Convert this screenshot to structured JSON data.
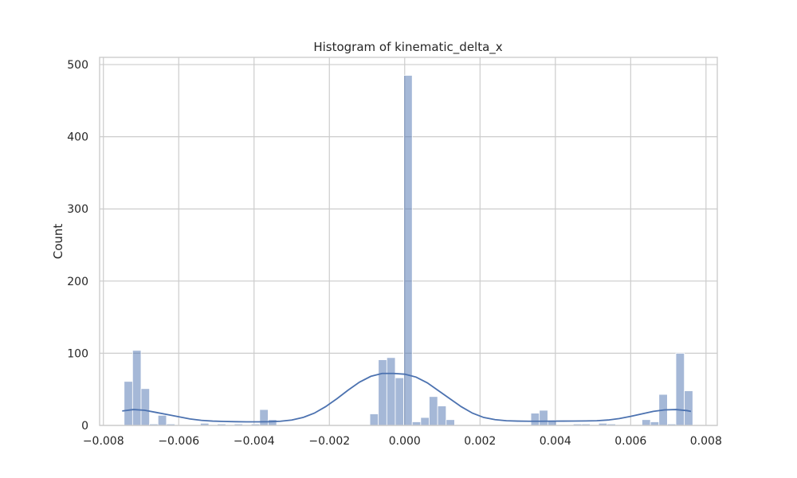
{
  "chart_data": {
    "type": "bar",
    "title": "Histogram of kinematic_delta_x",
    "xlabel": "",
    "ylabel": "Count",
    "xlim": [
      -0.0081,
      0.0083
    ],
    "ylim": [
      0,
      510
    ],
    "x_ticks": [
      -0.008,
      -0.006,
      -0.004,
      -0.002,
      0.0,
      0.002,
      0.004,
      0.006,
      0.008
    ],
    "x_tick_labels": [
      "−0.008",
      "−0.006",
      "−0.004",
      "−0.002",
      "0.000",
      "0.002",
      "0.004",
      "0.006",
      "0.008"
    ],
    "y_ticks": [
      0,
      100,
      200,
      300,
      400,
      500
    ],
    "y_tick_labels": [
      "0",
      "100",
      "200",
      "300",
      "400",
      "500"
    ],
    "grid": true,
    "bin_width": 0.000225,
    "bins": [
      {
        "x0": -0.00745,
        "count": 61
      },
      {
        "x0": -0.007225,
        "count": 104
      },
      {
        "x0": -0.007,
        "count": 51
      },
      {
        "x0": -0.006775,
        "count": 2
      },
      {
        "x0": -0.00655,
        "count": 14
      },
      {
        "x0": -0.006325,
        "count": 2
      },
      {
        "x0": -0.005425,
        "count": 3
      },
      {
        "x0": -0.004975,
        "count": 2
      },
      {
        "x0": -0.004525,
        "count": 2
      },
      {
        "x0": -0.004075,
        "count": 2
      },
      {
        "x0": -0.00385,
        "count": 22
      },
      {
        "x0": -0.003625,
        "count": 8
      },
      {
        "x0": -0.000925,
        "count": 16
      },
      {
        "x0": -0.0007,
        "count": 91
      },
      {
        "x0": -0.000475,
        "count": 94
      },
      {
        "x0": -0.00025,
        "count": 66
      },
      {
        "x0": -2.5e-05,
        "count": 485
      },
      {
        "x0": 0.0002,
        "count": 5
      },
      {
        "x0": 0.000425,
        "count": 11
      },
      {
        "x0": 0.00065,
        "count": 40
      },
      {
        "x0": 0.000875,
        "count": 27
      },
      {
        "x0": 0.0011,
        "count": 8
      },
      {
        "x0": 0.00335,
        "count": 17
      },
      {
        "x0": 0.003575,
        "count": 21
      },
      {
        "x0": 0.0038,
        "count": 7
      },
      {
        "x0": 0.004475,
        "count": 2
      },
      {
        "x0": 0.0047,
        "count": 2
      },
      {
        "x0": 0.00515,
        "count": 3
      },
      {
        "x0": 0.005375,
        "count": 2
      },
      {
        "x0": 0.0063,
        "count": 8
      },
      {
        "x0": 0.006525,
        "count": 5
      },
      {
        "x0": 0.00675,
        "count": 43
      },
      {
        "x0": 0.006975,
        "count": 2
      },
      {
        "x0": 0.0072,
        "count": 100
      },
      {
        "x0": 0.007425,
        "count": 48
      }
    ],
    "kde": {
      "x": [
        -0.0075,
        -0.0072,
        -0.0069,
        -0.0066,
        -0.0063,
        -0.006,
        -0.0057,
        -0.0054,
        -0.0051,
        -0.0048,
        -0.0045,
        -0.0042,
        -0.0039,
        -0.0036,
        -0.0033,
        -0.003,
        -0.0027,
        -0.0024,
        -0.0021,
        -0.0018,
        -0.0015,
        -0.0012,
        -0.0009,
        -0.0006,
        -0.0003,
        0.0,
        0.0003,
        0.0006,
        0.0009,
        0.0012,
        0.0015,
        0.0018,
        0.0021,
        0.0024,
        0.0027,
        0.003,
        0.0033,
        0.0036,
        0.0039,
        0.0042,
        0.0045,
        0.0048,
        0.0051,
        0.0054,
        0.0057,
        0.006,
        0.0063,
        0.0066,
        0.0069,
        0.0072,
        0.0075,
        0.0076
      ],
      "y": [
        20,
        22,
        21,
        18,
        15,
        12,
        9,
        7,
        6,
        5.5,
        5.2,
        5.0,
        5.0,
        5.2,
        5.8,
        7.5,
        11,
        17,
        26,
        37,
        49,
        60,
        68,
        72,
        72,
        71,
        67,
        59,
        48,
        37,
        26,
        17,
        11,
        8,
        6.5,
        6,
        5.8,
        5.8,
        5.9,
        6,
        6.1,
        6.2,
        6.5,
        7.5,
        9.5,
        12.5,
        16,
        19.5,
        21.5,
        22,
        20.5,
        19.5
      ]
    }
  }
}
